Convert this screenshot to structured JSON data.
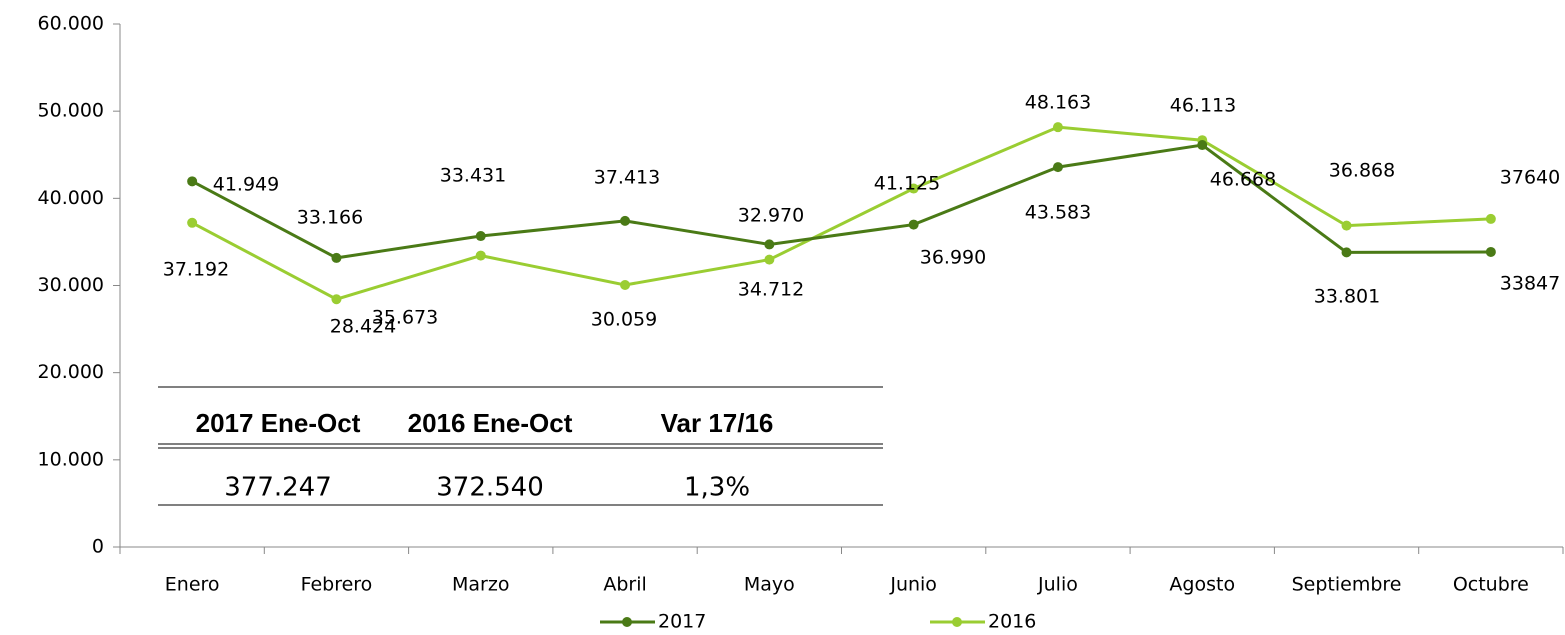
{
  "chart_data": {
    "type": "line",
    "categories": [
      "Enero",
      "Febrero",
      "Marzo",
      "Abril",
      "Mayo",
      "Junio",
      "Julio",
      "Agosto",
      "Septiembre",
      "Octubre"
    ],
    "series": [
      {
        "name": "2017",
        "color": "#4a7a16",
        "values": [
          41949,
          33166,
          35673,
          37413,
          34712,
          36990,
          43583,
          46113,
          33801,
          33847
        ],
        "value_labels": [
          "41.949",
          "33.166",
          "35.673",
          "37.413",
          "34.712",
          "36.990",
          "43.583",
          "46.113",
          "33.801",
          "33847"
        ]
      },
      {
        "name": "2016",
        "color": "#9acd32",
        "values": [
          37192,
          28424,
          33431,
          30059,
          32970,
          41125,
          48163,
          46668,
          36868,
          37640
        ],
        "value_labels": [
          "37.192",
          "28.424",
          "33.431",
          "30.059",
          "32.970",
          "41.125",
          "48.163",
          "46.668",
          "36.868",
          "37640"
        ]
      }
    ],
    "ylim": [
      0,
      60000
    ],
    "yticks": [
      0,
      {
        "value": 10000,
        "label": "10.000"
      },
      {
        "value": 20000,
        "label": "20.000"
      },
      {
        "value": 30000,
        "label": "30.000"
      },
      {
        "value": 40000,
        "label": "40.000"
      },
      {
        "value": 50000,
        "label": "50.000"
      },
      {
        "value": 60000,
        "label": "60.000"
      }
    ],
    "legend": "bottom"
  },
  "table": {
    "header": [
      "2017 Ene-Oct",
      "2016 Ene-Oct",
      "Var 17/16"
    ],
    "rows": [
      [
        "377.247",
        "372.540",
        "1,3%"
      ]
    ]
  }
}
